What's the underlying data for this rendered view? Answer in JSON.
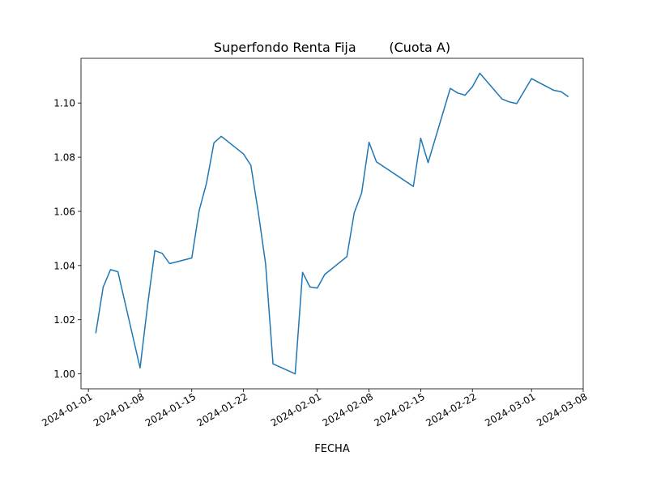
{
  "chart_data": {
    "type": "line",
    "title": "Superfondo Renta Fija        (Cuota A)",
    "xlabel": "FECHA",
    "ylabel": "",
    "x_tick_labels": [
      "2024-01-01",
      "2024-01-08",
      "2024-01-15",
      "2024-01-22",
      "2024-02-01",
      "2024-02-08",
      "2024-02-15",
      "2024-02-22",
      "2024-03-01",
      "2024-03-08"
    ],
    "y_tick_labels": [
      "1.00",
      "1.02",
      "1.04",
      "1.06",
      "1.08",
      "1.10"
    ],
    "xlim": [
      "2023-12-31",
      "2024-03-08"
    ],
    "ylim": [
      0.9945,
      1.1165
    ],
    "grid": false,
    "colors": {
      "line": "#1f77b4",
      "axes": "#000000",
      "background": "#ffffff"
    },
    "series": [
      {
        "points": [
          [
            "2024-01-02",
            1.015
          ],
          [
            "2024-01-03",
            1.032
          ],
          [
            "2024-01-04",
            1.0385
          ],
          [
            "2024-01-05",
            1.0377
          ],
          [
            "2024-01-08",
            1.0022
          ],
          [
            "2024-01-09",
            1.025
          ],
          [
            "2024-01-10",
            1.0455
          ],
          [
            "2024-01-11",
            1.0445
          ],
          [
            "2024-01-12",
            1.0407
          ],
          [
            "2024-01-15",
            1.0428
          ],
          [
            "2024-01-16",
            1.0603
          ],
          [
            "2024-01-17",
            1.0705
          ],
          [
            "2024-01-18",
            1.0853
          ],
          [
            "2024-01-19",
            1.0877
          ],
          [
            "2024-01-22",
            1.0812
          ],
          [
            "2024-01-23",
            1.077
          ],
          [
            "2024-01-24",
            1.0598
          ],
          [
            "2024-01-25",
            1.0405
          ],
          [
            "2024-01-26",
            1.0037
          ],
          [
            "2024-01-29",
            1.0
          ],
          [
            "2024-01-30",
            1.0375
          ],
          [
            "2024-01-31",
            1.0321
          ],
          [
            "2024-02-01",
            1.0317
          ],
          [
            "2024-02-02",
            1.0367
          ],
          [
            "2024-02-05",
            1.0433
          ],
          [
            "2024-02-06",
            1.0595
          ],
          [
            "2024-02-07",
            1.0668
          ],
          [
            "2024-02-08",
            1.0855
          ],
          [
            "2024-02-09",
            1.0783
          ],
          [
            "2024-02-14",
            1.0692
          ],
          [
            "2024-02-15",
            1.087
          ],
          [
            "2024-02-16",
            1.078
          ],
          [
            "2024-02-19",
            1.1054
          ],
          [
            "2024-02-20",
            1.1037
          ],
          [
            "2024-02-21",
            1.1029
          ],
          [
            "2024-02-22",
            1.106
          ],
          [
            "2024-02-23",
            1.111
          ],
          [
            "2024-02-26",
            1.1015
          ],
          [
            "2024-02-27",
            1.1004
          ],
          [
            "2024-02-28",
            1.0998
          ],
          [
            "2024-03-01",
            1.109
          ],
          [
            "2024-03-04",
            1.1047
          ],
          [
            "2024-03-05",
            1.1042
          ],
          [
            "2024-03-06",
            1.1023
          ]
        ]
      }
    ]
  }
}
